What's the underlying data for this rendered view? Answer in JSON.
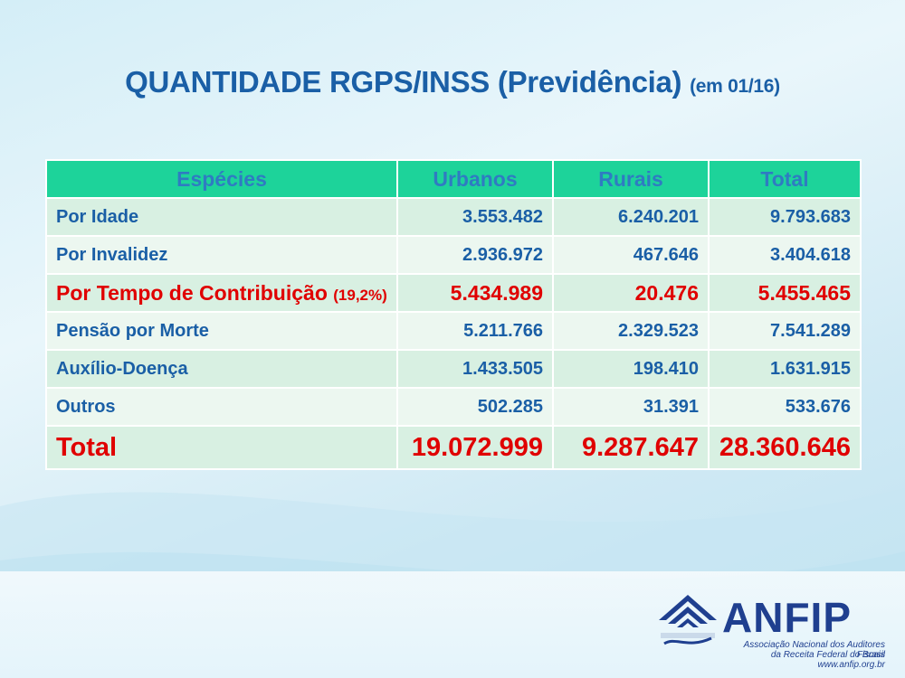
{
  "title": {
    "main": "QUANTIDADE RGPS/INSS (Previdência)",
    "sub": "(em 01/16)"
  },
  "table": {
    "headers": [
      "Espécies",
      "Urbanos",
      "Rurais",
      "Total"
    ],
    "rows": [
      {
        "label": "Por Idade",
        "note": "",
        "urbanos": "3.553.482",
        "rurais": "6.240.201",
        "total": "9.793.683"
      },
      {
        "label": "Por Invalidez",
        "note": "",
        "urbanos": "2.936.972",
        "rurais": "467.646",
        "total": "3.404.618"
      },
      {
        "label": "Por Tempo de Contribuição",
        "note": "(19,2%)",
        "urbanos": "5.434.989",
        "rurais": "20.476",
        "total": "5.455.465"
      },
      {
        "label": "Pensão por Morte",
        "note": "",
        "urbanos": "5.211.766",
        "rurais": "2.329.523",
        "total": "7.541.289"
      },
      {
        "label": "Auxílio-Doença",
        "note": "",
        "urbanos": "1.433.505",
        "rurais": "198.410",
        "total": "1.631.915"
      },
      {
        "label": "Outros",
        "note": "",
        "urbanos": "502.285",
        "rurais": "31.391",
        "total": "533.676"
      }
    ],
    "total": {
      "label": "Total",
      "urbanos": "19.072.999",
      "rurais": "9.287.647",
      "total": "28.360.646"
    }
  },
  "logo": {
    "name": "ANFIP",
    "line1": "Associação Nacional dos Auditores Fiscais",
    "line2": "da Receita Federal do Brasil",
    "url": "www.anfip.org.br"
  },
  "colors": {
    "title": "#1a5fa6",
    "header_bg": "#1dd39a",
    "highlight": "#e00000",
    "logo": "#1f3f8f"
  }
}
